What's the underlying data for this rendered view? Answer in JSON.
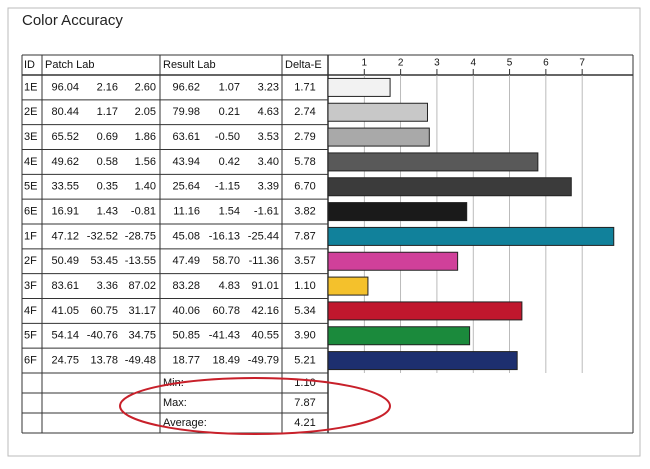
{
  "chart_data": {
    "type": "bar",
    "orientation": "horizontal",
    "title": "Color Accuracy",
    "columns": [
      "ID",
      "Patch Lab",
      "Result Lab",
      "Delta-E"
    ],
    "categories": [
      "1E",
      "2E",
      "3E",
      "4E",
      "5E",
      "6E",
      "1F",
      "2F",
      "3F",
      "4F",
      "5F",
      "6F"
    ],
    "patch_lab": [
      [
        "96.04",
        "2.16",
        "2.60"
      ],
      [
        "80.44",
        "1.17",
        "2.05"
      ],
      [
        "65.52",
        "0.69",
        "1.86"
      ],
      [
        "49.62",
        "0.58",
        "1.56"
      ],
      [
        "33.55",
        "0.35",
        "1.40"
      ],
      [
        "16.91",
        "1.43",
        "-0.81"
      ],
      [
        "47.12",
        "-32.52",
        "-28.75"
      ],
      [
        "50.49",
        "53.45",
        "-13.55"
      ],
      [
        "83.61",
        "3.36",
        "87.02"
      ],
      [
        "41.05",
        "60.75",
        "31.17"
      ],
      [
        "54.14",
        "-40.76",
        "34.75"
      ],
      [
        "24.75",
        "13.78",
        "-49.48"
      ]
    ],
    "result_lab": [
      [
        "96.62",
        "1.07",
        "3.23"
      ],
      [
        "79.98",
        "0.21",
        "4.63"
      ],
      [
        "63.61",
        "-0.50",
        "3.53"
      ],
      [
        "43.94",
        "0.42",
        "3.40"
      ],
      [
        "25.64",
        "-1.15",
        "3.39"
      ],
      [
        "11.16",
        "1.54",
        "-1.61"
      ],
      [
        "45.08",
        "-16.13",
        "-25.44"
      ],
      [
        "47.49",
        "58.70",
        "-11.36"
      ],
      [
        "83.28",
        "4.83",
        "91.01"
      ],
      [
        "40.06",
        "60.78",
        "42.16"
      ],
      [
        "50.85",
        "-41.43",
        "40.55"
      ],
      [
        "18.77",
        "18.49",
        "-49.79"
      ]
    ],
    "values": [
      1.71,
      2.74,
      2.79,
      5.78,
      6.7,
      3.82,
      7.87,
      3.57,
      1.1,
      5.34,
      3.9,
      5.21
    ],
    "value_labels": [
      "1.71",
      "2.74",
      "2.79",
      "5.78",
      "6.70",
      "3.82",
      "7.87",
      "3.57",
      "1.10",
      "5.34",
      "3.90",
      "5.21"
    ],
    "colors": [
      "#f2f2f2",
      "#c8c8c8",
      "#a9a9a9",
      "#595959",
      "#3b3b3b",
      "#1a1a1a",
      "#11819b",
      "#d0409a",
      "#f4c12c",
      "#c0172d",
      "#1b8a3c",
      "#1d2f6f"
    ],
    "xlim": [
      0,
      8.4
    ],
    "xticks": [
      1,
      2,
      3,
      4,
      5,
      6,
      7
    ],
    "grid": true,
    "summary": [
      {
        "label": "Min:",
        "value": "1.10"
      },
      {
        "label": "Max:",
        "value": "7.87"
      },
      {
        "label": "Average:",
        "value": "4.21"
      }
    ]
  }
}
